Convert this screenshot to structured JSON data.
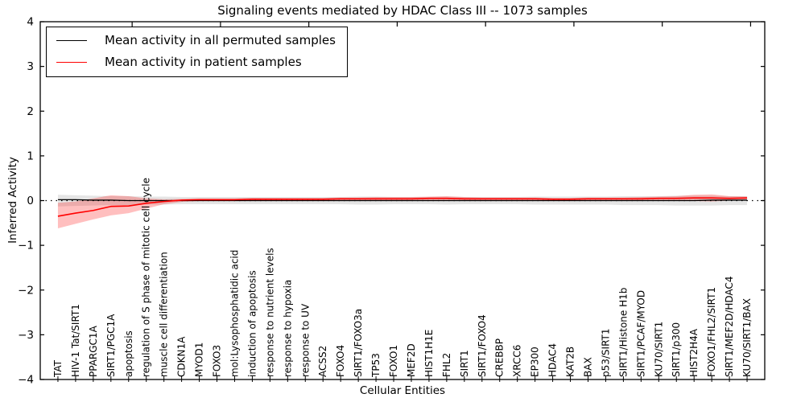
{
  "figure": {
    "title": "Signaling events mediated by HDAC Class III -- 1073 samples",
    "xlabel": "Cellular Entities",
    "ylabel": "Inferred Activity"
  },
  "legend": {
    "items": [
      {
        "label": "Mean activity in all permuted samples",
        "color": "#000000"
      },
      {
        "label": "Mean activity in patient samples",
        "color": "#ff0000"
      }
    ]
  },
  "axes": {
    "y_tick_labels": [
      "4",
      "3",
      "2",
      "1",
      "0",
      "−1",
      "−2",
      "−3",
      "−4"
    ],
    "ylim": [
      -4,
      4
    ],
    "zero_reference_line": "dotted"
  },
  "colors": {
    "permuted_line": "#000000",
    "patient_line": "#ff0000",
    "permuted_band": "rgba(0,0,0,0.10)",
    "patient_band": "rgba(255,0,0,0.25)"
  },
  "chart_data": {
    "type": "line",
    "title": "Signaling events mediated by HDAC Class III -- 1073 samples",
    "xlabel": "Cellular Entities",
    "ylabel": "Inferred Activity",
    "ylim": [
      -4,
      4
    ],
    "legend_position": "upper left",
    "grid": false,
    "categories": [
      "TAT",
      "HIV-1 Tat/SIRT1",
      "PPARGC1A",
      "SIRT1/PGC1A",
      "apoptosis",
      "regulation of S phase of mitotic cell cycle",
      "muscle cell differentiation",
      "CDKN1A",
      "MYOD1",
      "FOXO3",
      "mol:Lysophosphatidic acid",
      "induction of apoptosis",
      "response to nutrient levels",
      "response to hypoxia",
      "response to UV",
      "ACSS2",
      "FOXO4",
      "SIRT1/FOXO3a",
      "TP53",
      "FOXO1",
      "MEF2D",
      "HIST1H1E",
      "FHL2",
      "SIRT1",
      "SIRT1/FOXO4",
      "CREBBP",
      "XRCC6",
      "EP300",
      "HDAC4",
      "KAT2B",
      "BAX",
      "p53/SIRT1",
      "SIRT1/Histone H1b",
      "SIRT1/PCAF/MYOD",
      "KU70/SIRT1",
      "SIRT1/p300",
      "HIST2H4A",
      "FOXO1/FHL2/SIRT1",
      "SIRT1/MEF2D/HDAC4",
      "KU70/SIRT1/BAX"
    ],
    "series": [
      {
        "name": "Mean activity in all permuted samples",
        "color": "#000000",
        "band_color": "rgba(0,0,0,0.10)",
        "values": [
          0.02,
          0.02,
          0.01,
          0.01,
          0.0,
          0.0,
          0.0,
          0.0,
          0.0,
          0.0,
          0.0,
          0.0,
          0.0,
          0.0,
          0.0,
          0.0,
          0.0,
          0.0,
          0.0,
          0.0,
          0.0,
          0.0,
          0.0,
          0.0,
          0.0,
          0.0,
          0.0,
          0.0,
          0.0,
          0.0,
          0.0,
          0.0,
          0.0,
          0.0,
          0.0,
          0.0,
          0.0,
          0.01,
          0.01,
          0.01
        ],
        "band_upper": [
          0.13,
          0.12,
          0.11,
          0.1,
          0.1,
          0.09,
          0.09,
          0.08,
          0.08,
          0.08,
          0.08,
          0.08,
          0.08,
          0.08,
          0.08,
          0.08,
          0.08,
          0.09,
          0.09,
          0.08,
          0.08,
          0.08,
          0.09,
          0.08,
          0.08,
          0.08,
          0.08,
          0.09,
          0.09,
          0.09,
          0.09,
          0.09,
          0.1,
          0.1,
          0.1,
          0.11,
          0.11,
          0.11,
          0.1,
          0.1
        ],
        "band_lower": [
          -0.13,
          -0.12,
          -0.11,
          -0.1,
          -0.1,
          -0.09,
          -0.09,
          -0.08,
          -0.08,
          -0.08,
          -0.08,
          -0.08,
          -0.08,
          -0.08,
          -0.08,
          -0.08,
          -0.08,
          -0.09,
          -0.09,
          -0.08,
          -0.08,
          -0.08,
          -0.09,
          -0.08,
          -0.08,
          -0.08,
          -0.08,
          -0.09,
          -0.09,
          -0.09,
          -0.09,
          -0.09,
          -0.1,
          -0.1,
          -0.1,
          -0.11,
          -0.11,
          -0.11,
          -0.1,
          -0.1
        ]
      },
      {
        "name": "Mean activity in patient samples",
        "color": "#ff0000",
        "band_color": "rgba(255,0,0,0.25)",
        "values": [
          -0.35,
          -0.28,
          -0.22,
          -0.13,
          -0.12,
          -0.06,
          -0.02,
          0.01,
          0.02,
          0.02,
          0.02,
          0.03,
          0.03,
          0.03,
          0.03,
          0.03,
          0.04,
          0.04,
          0.04,
          0.04,
          0.04,
          0.05,
          0.05,
          0.04,
          0.04,
          0.04,
          0.04,
          0.04,
          0.03,
          0.03,
          0.04,
          0.04,
          0.04,
          0.04,
          0.05,
          0.05,
          0.06,
          0.06,
          0.05,
          0.06
        ],
        "band_upper": [
          -0.05,
          -0.02,
          0.05,
          0.12,
          0.1,
          0.05,
          0.03,
          0.04,
          0.05,
          0.05,
          0.05,
          0.06,
          0.06,
          0.06,
          0.06,
          0.06,
          0.07,
          0.07,
          0.08,
          0.08,
          0.08,
          0.09,
          0.1,
          0.08,
          0.07,
          0.07,
          0.07,
          0.07,
          0.06,
          0.06,
          0.07,
          0.07,
          0.07,
          0.08,
          0.09,
          0.1,
          0.13,
          0.14,
          0.1,
          0.09
        ],
        "band_lower": [
          -0.62,
          -0.52,
          -0.42,
          -0.33,
          -0.28,
          -0.18,
          -0.08,
          -0.03,
          -0.01,
          -0.01,
          -0.01,
          0.0,
          0.0,
          0.0,
          0.0,
          0.0,
          0.01,
          0.01,
          0.01,
          0.01,
          0.0,
          0.01,
          0.0,
          0.01,
          0.01,
          0.01,
          0.01,
          0.01,
          0.0,
          0.0,
          0.01,
          0.01,
          0.01,
          0.0,
          0.01,
          0.0,
          -0.01,
          -0.02,
          0.0,
          0.02
        ]
      }
    ]
  }
}
